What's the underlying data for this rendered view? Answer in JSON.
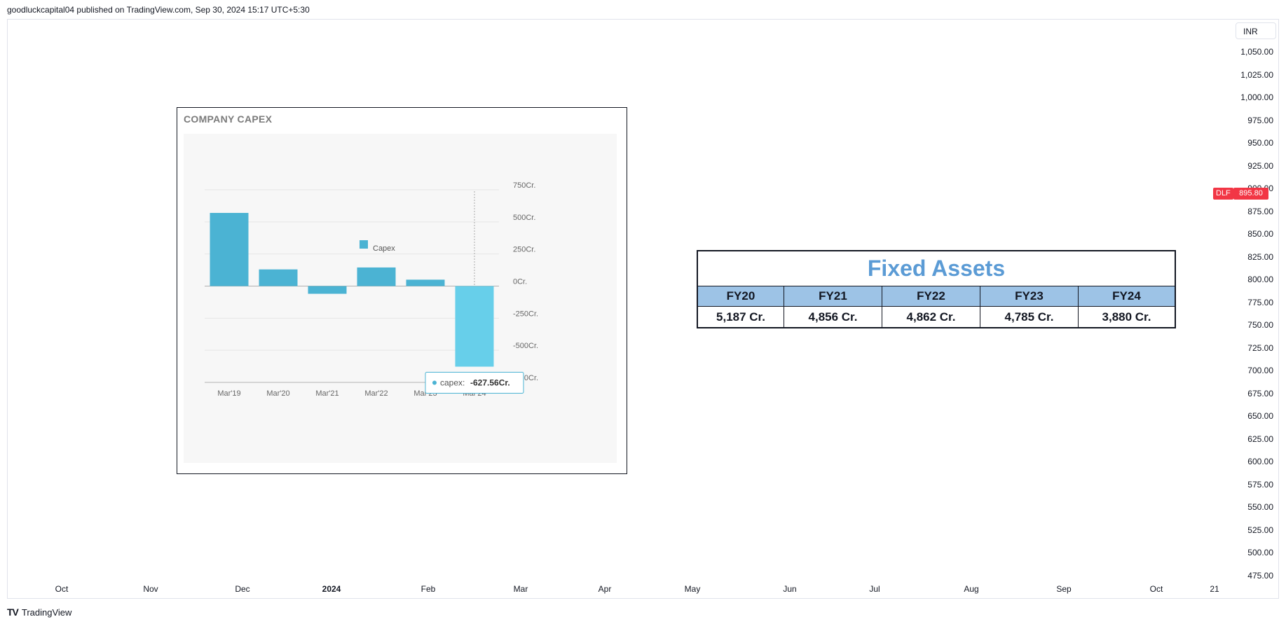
{
  "header": {
    "published_line": "goodluckcapital04 published on TradingView.com, Sep 30, 2024 15:17 UTC+5:30"
  },
  "price_scale": {
    "currency": "INR",
    "ticks": [
      "1,050.00",
      "1,025.00",
      "1,000.00",
      "975.00",
      "950.00",
      "925.00",
      "900.00",
      "875.00",
      "850.00",
      "825.00",
      "800.00",
      "775.00",
      "750.00",
      "725.00",
      "700.00",
      "675.00",
      "650.00",
      "625.00",
      "600.00",
      "575.00",
      "550.00",
      "525.00",
      "500.00",
      "475.00"
    ],
    "symbol": "DLF",
    "last_price": "895.80",
    "tag_color": "#f23645"
  },
  "time_axis": {
    "labels": [
      "Oct",
      "Nov",
      "Dec",
      "2024",
      "Feb",
      "Mar",
      "Apr",
      "May",
      "Jun",
      "Jul",
      "Aug",
      "Sep",
      "Oct",
      "21"
    ]
  },
  "brand": {
    "logo": "TV",
    "name": "TradingView"
  },
  "capex_panel": {
    "title": "COMPANY CAPEX",
    "tooltip_label": "capex:",
    "tooltip_value": "-627.56Cr."
  },
  "chart_data": {
    "type": "bar",
    "title": "COMPANY CAPEX",
    "categories": [
      "Mar'19",
      "Mar'20",
      "Mar'21",
      "Mar'22",
      "Mar'23",
      "Mar'24"
    ],
    "series": [
      {
        "name": "Capex",
        "values": [
          570,
          130,
          -60,
          145,
          50,
          -627.56
        ],
        "color": "#4bb3d3"
      }
    ],
    "highlight_color": "#67cfea",
    "y_ticks": [
      "750Cr.",
      "500Cr.",
      "250Cr.",
      "0Cr.",
      "-250Cr.",
      "-500Cr.",
      "-750Cr."
    ],
    "ylim": [
      -750,
      750
    ],
    "legend": "top-center",
    "grid": true
  },
  "fixed_assets": {
    "title": "Fixed Assets",
    "headers": [
      "FY20",
      "FY21",
      "FY22",
      "FY23",
      "FY24"
    ],
    "values": [
      "5,187 Cr.",
      "4,856 Cr.",
      "4,862 Cr.",
      "4,785 Cr.",
      "3,880 Cr."
    ],
    "title_color": "#5b9bd5",
    "header_bg": "#9dc3e6"
  }
}
